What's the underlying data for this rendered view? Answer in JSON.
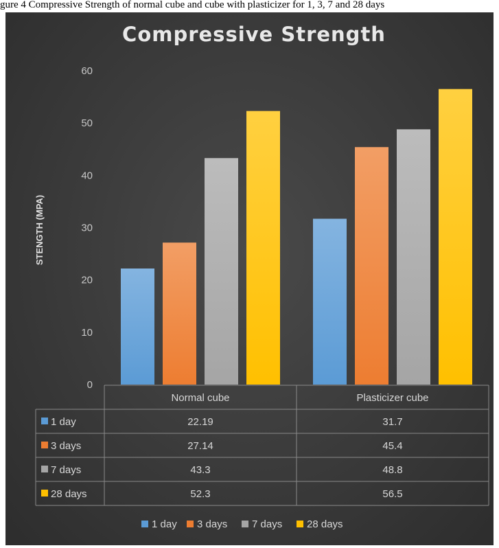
{
  "caption": "gure 4 Compressive Strength of normal cube and cube with plasticizer for 1, 3, 7 and 28 days",
  "chart_data": {
    "type": "bar",
    "title": "Compressive Strength",
    "ylabel": "STENGTH (MPA)",
    "xlabel": "",
    "ylim": [
      0,
      60
    ],
    "yticks": [
      0,
      10,
      20,
      30,
      40,
      50,
      60
    ],
    "categories": [
      "Normal cube",
      "Plasticizer cube"
    ],
    "series": [
      {
        "name": "1 day",
        "values": [
          22.19,
          31.7
        ],
        "color": "#5b9bd5"
      },
      {
        "name": "3 days",
        "values": [
          27.14,
          45.4
        ],
        "color": "#ed7d31"
      },
      {
        "name": "7 days",
        "values": [
          43.3,
          48.8
        ],
        "color": "#a5a5a5"
      },
      {
        "name": "28 days",
        "values": [
          52.3,
          56.5
        ],
        "color": "#ffc000"
      }
    ],
    "table_values": [
      [
        "22.19",
        "31.7"
      ],
      [
        "27.14",
        "45.4"
      ],
      [
        "43.3",
        "48.8"
      ],
      [
        "52.3",
        "56.5"
      ]
    ],
    "grid": false,
    "legend_position": "bottom",
    "data_table": true
  }
}
